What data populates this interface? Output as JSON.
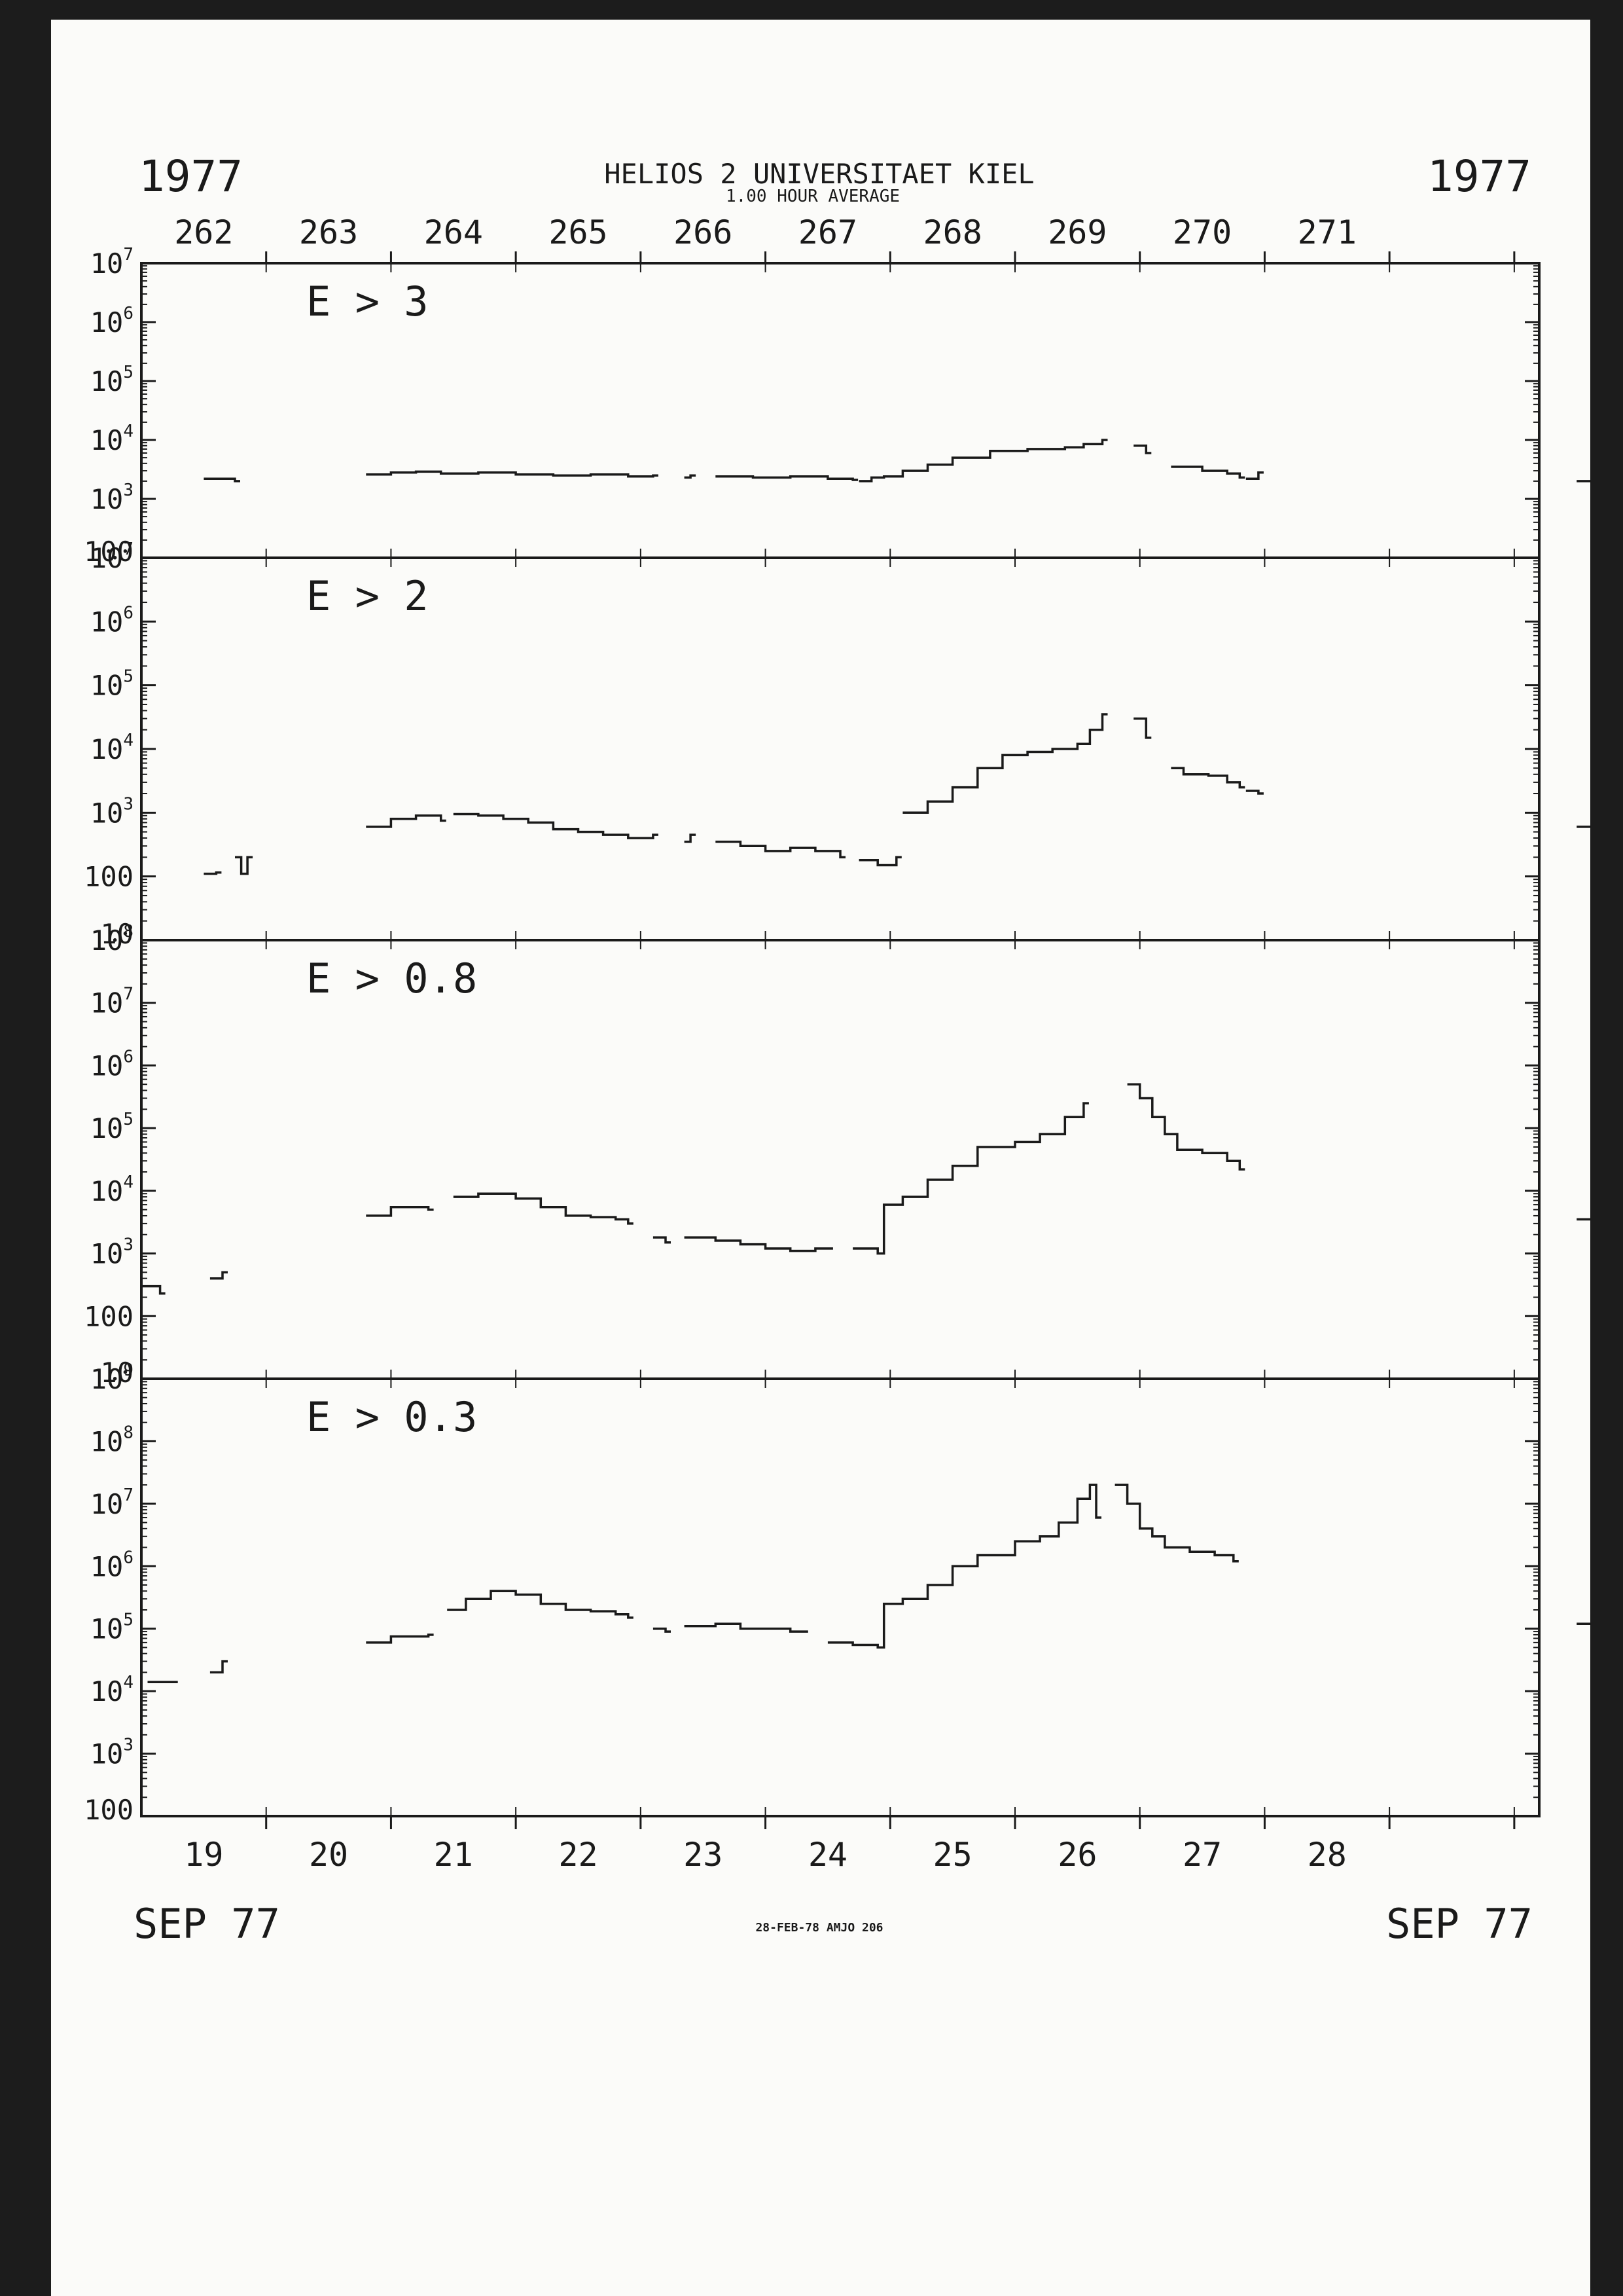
{
  "header": {
    "year_left": "1977",
    "year_right": "1977",
    "title": "HELIOS 2  UNIVERSITAET KIEL",
    "subtitle": "1.00 HOUR AVERAGE",
    "doy_labels": [
      "262",
      "263",
      "264",
      "265",
      "266",
      "267",
      "268",
      "269",
      "270",
      "271"
    ]
  },
  "footer": {
    "date_labels": [
      "19",
      "20",
      "21",
      "22",
      "23",
      "24",
      "25",
      "26",
      "27",
      "28"
    ],
    "month_left": "SEP 77",
    "month_right": "SEP 77",
    "stamp": "28-FEB-78 AMJO 206"
  },
  "colors": {
    "ink": "#1a1a1a",
    "paper": "#fbfbf9",
    "border": "#1c1c1c"
  },
  "chart_data": [
    {
      "type": "line",
      "label": "E > 3",
      "ylim_exp": [
        2,
        7
      ],
      "tick_labels": [
        "100",
        "10^3",
        "10^4",
        "10^5",
        "10^6",
        "10^7"
      ],
      "x_unit": "day of year 1977",
      "segments": [
        [
          [
            262.0,
            2200
          ],
          [
            262.15,
            2200
          ],
          [
            262.25,
            2000
          ]
        ],
        [
          [
            263.3,
            2600
          ],
          [
            263.5,
            2800
          ],
          [
            263.7,
            2900
          ],
          [
            263.9,
            2700
          ],
          [
            264.2,
            2800
          ],
          [
            264.5,
            2600
          ],
          [
            264.8,
            2500
          ],
          [
            265.1,
            2600
          ],
          [
            265.4,
            2400
          ],
          [
            265.6,
            2500
          ]
        ],
        [
          [
            265.85,
            2300
          ],
          [
            265.9,
            2500
          ]
        ],
        [
          [
            266.1,
            2400
          ],
          [
            266.4,
            2300
          ],
          [
            266.7,
            2400
          ],
          [
            267.0,
            2200
          ],
          [
            267.2,
            2100
          ]
        ],
        [
          [
            267.25,
            2000
          ],
          [
            267.35,
            2300
          ],
          [
            267.45,
            2400
          ],
          [
            267.6,
            3000
          ],
          [
            267.8,
            3800
          ],
          [
            268.0,
            5000
          ],
          [
            268.3,
            6500
          ],
          [
            268.6,
            7000
          ],
          [
            268.9,
            7500
          ],
          [
            269.05,
            8500
          ],
          [
            269.2,
            10000
          ]
        ],
        [
          [
            269.45,
            8000
          ],
          [
            269.55,
            6000
          ]
        ],
        [
          [
            269.75,
            3500
          ],
          [
            270.0,
            3000
          ],
          [
            270.2,
            2700
          ],
          [
            270.3,
            2300
          ]
        ],
        [
          [
            270.35,
            2200
          ],
          [
            270.45,
            2800
          ]
        ],
        [
          [
            273.0,
            2000
          ],
          [
            273.2,
            1900
          ]
        ]
      ]
    },
    {
      "type": "line",
      "label": "E > 2",
      "ylim_exp": [
        1,
        7
      ],
      "tick_labels": [
        "10",
        "100",
        "10^3",
        "10^4",
        "10^5",
        "10^6",
        "10^7"
      ],
      "x_unit": "day of year 1977",
      "segments": [
        [
          [
            262.0,
            110
          ],
          [
            262.1,
            115
          ]
        ],
        [
          [
            262.25,
            200
          ],
          [
            262.3,
            110
          ],
          [
            262.35,
            200
          ]
        ],
        [
          [
            263.3,
            600
          ],
          [
            263.5,
            800
          ],
          [
            263.7,
            900
          ],
          [
            263.9,
            750
          ]
        ],
        [
          [
            264.0,
            950
          ],
          [
            264.2,
            900
          ],
          [
            264.4,
            800
          ],
          [
            264.6,
            700
          ],
          [
            264.8,
            550
          ],
          [
            265.0,
            500
          ],
          [
            265.2,
            450
          ],
          [
            265.4,
            400
          ],
          [
            265.6,
            450
          ]
        ],
        [
          [
            265.85,
            350
          ],
          [
            265.9,
            450
          ]
        ],
        [
          [
            266.1,
            350
          ],
          [
            266.3,
            300
          ],
          [
            266.5,
            250
          ],
          [
            266.7,
            280
          ],
          [
            266.9,
            250
          ],
          [
            267.1,
            200
          ]
        ],
        [
          [
            267.25,
            180
          ],
          [
            267.4,
            150
          ],
          [
            267.55,
            200
          ]
        ],
        [
          [
            267.6,
            1000
          ],
          [
            267.8,
            1500
          ],
          [
            268.0,
            2500
          ],
          [
            268.2,
            5000
          ],
          [
            268.4,
            8000
          ],
          [
            268.6,
            9000
          ],
          [
            268.8,
            10000
          ],
          [
            269.0,
            12000
          ],
          [
            269.1,
            20000
          ],
          [
            269.2,
            35000
          ]
        ],
        [
          [
            269.45,
            30000
          ],
          [
            269.55,
            15000
          ]
        ],
        [
          [
            269.75,
            5000
          ],
          [
            269.85,
            4000
          ],
          [
            270.05,
            3800
          ],
          [
            270.2,
            3000
          ],
          [
            270.3,
            2500
          ]
        ],
        [
          [
            270.35,
            2200
          ],
          [
            270.45,
            2000
          ]
        ],
        [
          [
            273.0,
            600
          ],
          [
            273.2,
            500
          ]
        ]
      ]
    },
    {
      "type": "line",
      "label": "E > 0.8",
      "ylim_exp": [
        1,
        8
      ],
      "tick_labels": [
        "10",
        "100",
        "10^3",
        "10^4",
        "10^5",
        "10^6",
        "10^7",
        "10^8"
      ],
      "x_unit": "day of year 1977",
      "segments": [
        [
          [
            261.5,
            300
          ],
          [
            261.65,
            230
          ]
        ],
        [
          [
            262.05,
            400
          ],
          [
            262.15,
            500
          ]
        ],
        [
          [
            263.3,
            4000
          ],
          [
            263.5,
            5500
          ],
          [
            263.8,
            5000
          ]
        ],
        [
          [
            264.0,
            8000
          ],
          [
            264.2,
            9000
          ],
          [
            264.5,
            7500
          ],
          [
            264.7,
            5500
          ],
          [
            264.9,
            4000
          ],
          [
            265.1,
            3800
          ],
          [
            265.3,
            3500
          ],
          [
            265.4,
            3000
          ]
        ],
        [
          [
            265.6,
            1800
          ],
          [
            265.7,
            1500
          ]
        ],
        [
          [
            265.85,
            1800
          ],
          [
            266.1,
            1600
          ],
          [
            266.3,
            1400
          ],
          [
            266.5,
            1200
          ],
          [
            266.7,
            1100
          ],
          [
            266.9,
            1200
          ],
          [
            267.0,
            1200
          ]
        ],
        [
          [
            267.2,
            1200
          ],
          [
            267.4,
            1000
          ],
          [
            267.45,
            6000
          ],
          [
            267.6,
            8000
          ],
          [
            267.8,
            15000
          ],
          [
            268.0,
            25000
          ],
          [
            268.2,
            50000
          ],
          [
            268.5,
            60000
          ],
          [
            268.7,
            80000
          ],
          [
            268.9,
            150000
          ],
          [
            269.05,
            250000
          ]
        ],
        [
          [
            269.4,
            500000
          ],
          [
            269.5,
            300000
          ],
          [
            269.6,
            150000
          ],
          [
            269.7,
            80000
          ],
          [
            269.8,
            45000
          ],
          [
            270.0,
            40000
          ],
          [
            270.2,
            30000
          ],
          [
            270.3,
            22000
          ]
        ],
        [
          [
            273.0,
            3500
          ],
          [
            273.2,
            3200
          ]
        ]
      ]
    },
    {
      "type": "line",
      "label": "E > 0.3",
      "ylim_exp": [
        2,
        9
      ],
      "tick_labels": [
        "100",
        "10^3",
        "10^4",
        "10^5",
        "10^6",
        "10^7",
        "10^8",
        "10^9"
      ],
      "x_unit": "day of year 1977",
      "segments": [
        [
          [
            261.55,
            14000
          ],
          [
            261.75,
            14000
          ]
        ],
        [
          [
            262.05,
            20000
          ],
          [
            262.15,
            30000
          ]
        ],
        [
          [
            263.3,
            60000
          ],
          [
            263.5,
            75000
          ],
          [
            263.8,
            80000
          ]
        ],
        [
          [
            263.95,
            200000
          ],
          [
            264.1,
            300000
          ],
          [
            264.3,
            400000
          ],
          [
            264.5,
            350000
          ],
          [
            264.7,
            250000
          ],
          [
            264.9,
            200000
          ],
          [
            265.1,
            190000
          ],
          [
            265.3,
            170000
          ],
          [
            265.4,
            150000
          ]
        ],
        [
          [
            265.6,
            100000
          ],
          [
            265.7,
            90000
          ]
        ],
        [
          [
            265.85,
            110000
          ],
          [
            266.1,
            120000
          ],
          [
            266.3,
            100000
          ],
          [
            266.5,
            100000
          ],
          [
            266.7,
            90000
          ],
          [
            266.8,
            90000
          ]
        ],
        [
          [
            267.0,
            60000
          ],
          [
            267.2,
            55000
          ],
          [
            267.4,
            50000
          ],
          [
            267.45,
            250000
          ],
          [
            267.6,
            300000
          ],
          [
            267.8,
            500000
          ],
          [
            268.0,
            1000000
          ],
          [
            268.2,
            1500000
          ],
          [
            268.5,
            2500000
          ],
          [
            268.7,
            3000000
          ],
          [
            268.85,
            5000000
          ],
          [
            269.0,
            12000000
          ],
          [
            269.1,
            20000000
          ],
          [
            269.15,
            6000000
          ]
        ],
        [
          [
            269.3,
            20000000
          ],
          [
            269.4,
            10000000
          ],
          [
            269.5,
            4000000
          ],
          [
            269.6,
            3000000
          ],
          [
            269.7,
            2000000
          ],
          [
            269.9,
            1700000
          ],
          [
            270.1,
            1500000
          ],
          [
            270.25,
            1200000
          ]
        ],
        [
          [
            273.0,
            120000
          ],
          [
            273.2,
            110000
          ]
        ]
      ]
    }
  ]
}
